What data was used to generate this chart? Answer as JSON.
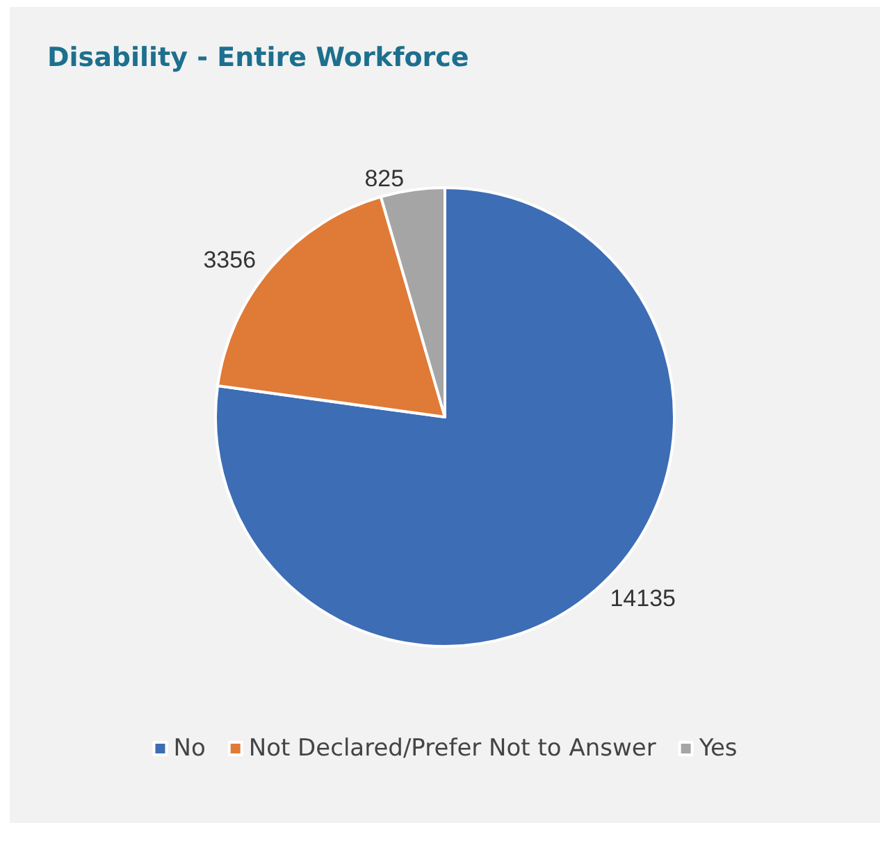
{
  "chart_data": {
    "type": "pie",
    "title": "Disability - Entire Workforce",
    "categories": [
      "No",
      "Not Declared/Prefer Not to Answer",
      "Yes"
    ],
    "values": [
      14135,
      3356,
      825
    ],
    "colors": [
      "#3d6db5",
      "#e07a37",
      "#a5a5a5"
    ],
    "data_labels": true,
    "legend": "bottom"
  }
}
